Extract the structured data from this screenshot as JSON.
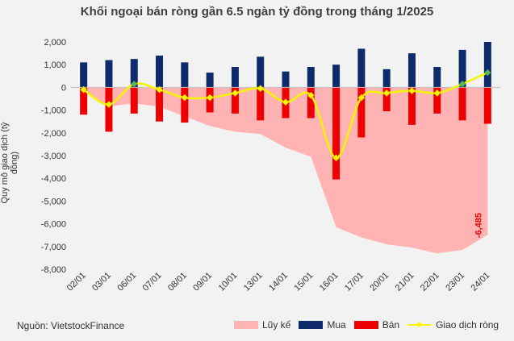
{
  "chart_data": {
    "type": "bar",
    "title": "Khối ngoại bán ròng gần 6.5 ngàn tỷ đồng trong tháng 1/2025",
    "ylabel": "Quy mô giao dịch (tỷ đồng)",
    "categories": [
      "02/01",
      "03/01",
      "06/01",
      "07/01",
      "08/01",
      "09/01",
      "10/01",
      "13/01",
      "14/01",
      "15/01",
      "16/01",
      "17/01",
      "20/01",
      "21/01",
      "22/01",
      "23/01",
      "24/01"
    ],
    "yticks": [
      "2,000",
      "1,000",
      "0",
      "-1,000",
      "-2,000",
      "-3,000",
      "-4,000",
      "-5,000",
      "-6,000",
      "-7,000",
      "-8,000"
    ],
    "ylim": [
      -8000,
      2000
    ],
    "series": [
      {
        "name": "Lũy kế",
        "type": "area",
        "color": "#ffb3b3",
        "values": [
          -100,
          -840,
          -700,
          -850,
          -1280,
          -1700,
          -1950,
          -2050,
          -2650,
          -3050,
          -6150,
          -6600,
          -6900,
          -7050,
          -7300,
          -7150,
          -6485
        ]
      },
      {
        "name": "Mua",
        "type": "bar",
        "color": "#0d2a6b",
        "values": [
          1100,
          1200,
          1250,
          1400,
          1100,
          650,
          900,
          1350,
          700,
          900,
          1000,
          1700,
          800,
          1500,
          900,
          1650,
          2000
        ]
      },
      {
        "name": "Bán",
        "type": "bar",
        "color": "#ee0000",
        "values": [
          -1200,
          -1950,
          -1150,
          -1500,
          -1550,
          -1100,
          -1150,
          -1450,
          -1350,
          -1350,
          -4050,
          -2200,
          -1050,
          -1650,
          -1150,
          -1450,
          -1600
        ]
      },
      {
        "name": "Giao dịch ròng",
        "type": "line",
        "color": "#f5f500",
        "values": [
          -100,
          -750,
          150,
          -100,
          -450,
          -450,
          -250,
          -50,
          -650,
          -350,
          -3100,
          -450,
          -250,
          -150,
          -250,
          150,
          650
        ]
      }
    ],
    "annotation": "-6,485",
    "legend_position": "bottom",
    "grid": false
  },
  "footer": {
    "source": "Nguồn: VietstockFinance"
  }
}
